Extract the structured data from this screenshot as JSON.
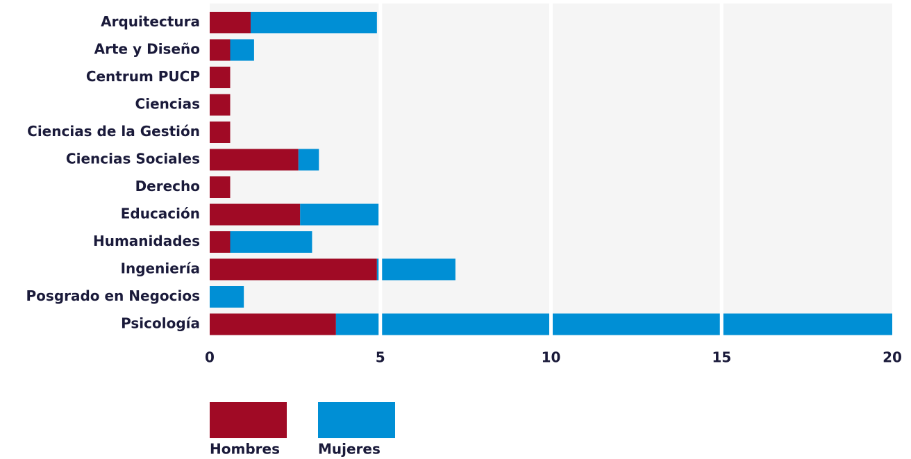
{
  "chart_data": {
    "type": "stacked_barh",
    "categories": [
      "Arquitectura",
      "Arte y Diseño",
      "Centrum PUCP",
      "Ciencias",
      "Ciencias de la Gestión",
      "Ciencias Sociales",
      "Derecho",
      "Educación",
      "Humanidades",
      "Ingeniería",
      "Posgrado en Negocios",
      "Psicología"
    ],
    "series": [
      {
        "name": "Hombres",
        "color": "#a00a25",
        "values": [
          1.2,
          0.6,
          0.6,
          0.6,
          0.6,
          2.6,
          0.6,
          2.65,
          0.6,
          4.9,
          0,
          3.7
        ]
      },
      {
        "name": "Mujeres",
        "color": "#008fd5",
        "values": [
          3.7,
          0.7,
          0,
          0,
          0,
          0.6,
          0,
          2.3,
          2.4,
          2.3,
          1.0,
          16.3
        ]
      }
    ],
    "xlim": [
      0,
      20
    ],
    "xticks": [
      0,
      5,
      10,
      15,
      20
    ],
    "grid": true
  }
}
